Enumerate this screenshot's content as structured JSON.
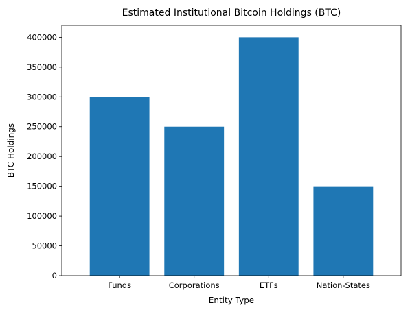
{
  "chart_data": {
    "type": "bar",
    "title": "Estimated Institutional Bitcoin Holdings (BTC)",
    "xlabel": "Entity Type",
    "ylabel": "BTC Holdings",
    "categories": [
      "Funds",
      "Corporations",
      "ETFs",
      "Nation-States"
    ],
    "values": [
      300000,
      250000,
      400000,
      150000
    ],
    "ylim": [
      0,
      420000
    ],
    "yticks": [
      0,
      50000,
      100000,
      150000,
      200000,
      250000,
      300000,
      350000,
      400000
    ],
    "bar_color": "#1f77b4",
    "grid": false,
    "legend": false
  }
}
